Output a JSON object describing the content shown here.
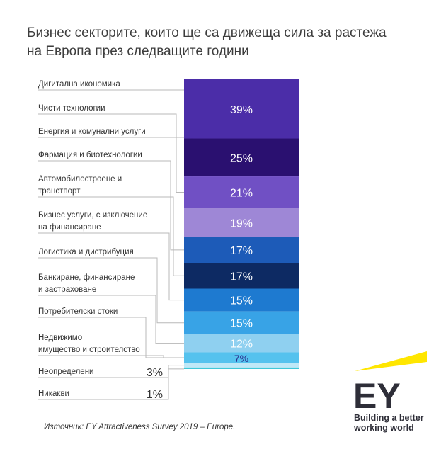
{
  "title_line1": "Бизнес секторите, които ще са движеща сила за растежа",
  "title_line2": "на Европа през следващите години",
  "source": "Източник: EY Attractiveness Survey 2019 – Europe.",
  "logo": {
    "mark": "EY",
    "tagline_line1": "Building a better",
    "tagline_line2": "working world",
    "beam_color": "#FFE600"
  },
  "chart_data": {
    "type": "bar",
    "stacked": true,
    "categories": [
      [
        "Дигитална икономика"
      ],
      [
        "Чисти технологии"
      ],
      [
        "Енергия и комунални услуги"
      ],
      [
        "Фармация и биотехнологии"
      ],
      [
        "Автомобилостроене и",
        "транстпорт"
      ],
      [
        "Бизнес услуги, с изключение",
        "на финансиране"
      ],
      [
        "Логистика и дистрибуция"
      ],
      [
        "Банкиране, финансиране",
        "и застраховане"
      ],
      [
        "Потребителски стоки"
      ],
      [
        "Недвижимо",
        "имущество и строителство"
      ],
      [
        "Неопределени"
      ],
      [
        "Никакви"
      ]
    ],
    "values": [
      null,
      39,
      null,
      25,
      21,
      19,
      17,
      17,
      15,
      15,
      12,
      7
    ],
    "value_labels": [
      "",
      "39%",
      "",
      "25%",
      "21%",
      "19%",
      "17%",
      "17%",
      "15%",
      "15%",
      "12%",
      "7%"
    ],
    "side_values": [
      "",
      "",
      "",
      "",
      "",
      "",
      "",
      "",
      "",
      "",
      "3%",
      "1%"
    ],
    "bar_segments": [
      {
        "label": "39%",
        "value": 39,
        "color": "#4B2DA8"
      },
      {
        "label": "25%",
        "value": 25,
        "color": "#2A1070"
      },
      {
        "label": "21%",
        "value": 21,
        "color": "#7050C4"
      },
      {
        "label": "19%",
        "value": 19,
        "color": "#9E87D6"
      },
      {
        "label": "17%",
        "value": 17,
        "color": "#1D5BB8"
      },
      {
        "label": "17%",
        "value": 17,
        "color": "#0D2A63"
      },
      {
        "label": "15%",
        "value": 15,
        "color": "#1E7AD0"
      },
      {
        "label": "15%",
        "value": 15,
        "color": "#38A3E6"
      },
      {
        "label": "12%",
        "value": 12,
        "color": "#8FD0F0"
      },
      {
        "label": "7%",
        "value": 7,
        "color": "#55C2EE"
      },
      {
        "label": "3%",
        "value": 3,
        "color": "#BFE8F7"
      },
      {
        "label": "1%",
        "value": 1,
        "color": "#3FC7D8"
      }
    ],
    "segment_to_label": [
      0,
      2,
      3,
      4,
      5,
      6,
      7,
      8,
      9,
      9,
      10,
      11
    ],
    "colors": {
      "label_text": "#333333",
      "connector": "#b8b8b8",
      "bar_text": "#ffffff",
      "bar_text_light": "#2a2a8a"
    }
  }
}
